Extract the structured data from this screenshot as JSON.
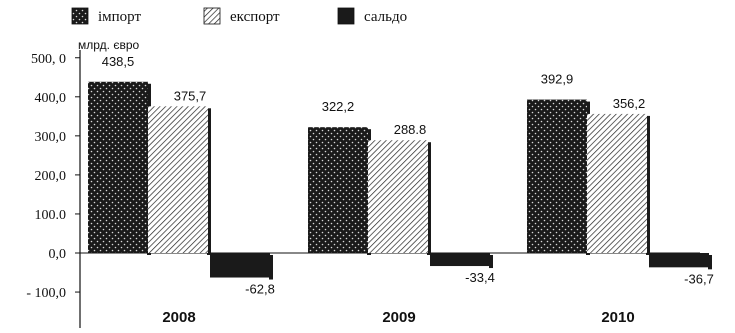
{
  "chart_data": {
    "type": "bar",
    "categories": [
      "2008",
      "2009",
      "2010"
    ],
    "series": [
      {
        "name": "імпорт",
        "values": [
          438.5,
          322.2,
          392.9
        ],
        "labels": [
          "438,5",
          "322,2",
          "392,9"
        ],
        "pattern": "dots"
      },
      {
        "name": "експорт",
        "values": [
          375.7,
          288.8,
          356.2
        ],
        "labels": [
          "375,7",
          "288.8",
          "356,2"
        ],
        "pattern": "hatch"
      },
      {
        "name": "сальдо",
        "values": [
          -62.8,
          -33.4,
          -36.7
        ],
        "labels": [
          "-62,8",
          "-33,4",
          "-36,7"
        ],
        "pattern": "solid"
      }
    ],
    "ylabel": "млрд. євро",
    "ylim": [
      -100,
      500
    ],
    "yticks": [
      500,
      400,
      300,
      200,
      100,
      0,
      -100
    ],
    "ytick_labels": [
      "500, 0",
      "400,0",
      "300,0",
      "200,0",
      "100.0",
      "0,0",
      "- 100,0"
    ],
    "legend_position": "top",
    "grid": false
  },
  "colors": {
    "bar_dark": "#1a1a1a",
    "dot": "#d8d8d8",
    "hatch_bg": "#ffffff",
    "axis": "#111111"
  }
}
